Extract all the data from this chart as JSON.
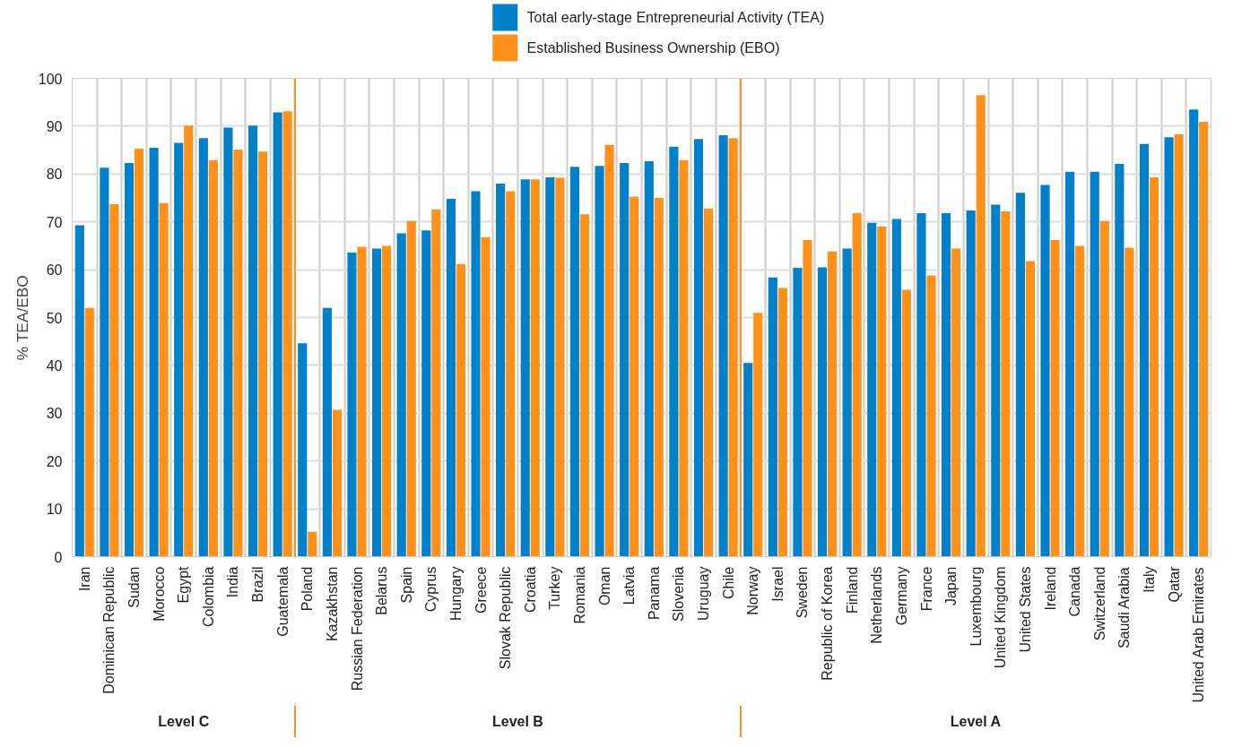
{
  "chart_data": {
    "type": "bar",
    "ylabel": "% TEA/EBO",
    "categories": [
      "Iran",
      "Dominican Republic",
      "Sudan",
      "Morocco",
      "Egypt",
      "Colombia",
      "India",
      "Brazil",
      "Guatemala",
      "Poland",
      "Kazakhstan",
      "Russian Federation",
      "Belarus",
      "Spain",
      "Cyprus",
      "Hungary",
      "Greece",
      "Slovak Republic",
      "Croatia",
      "Turkey",
      "Romania",
      "Oman",
      "Latvia",
      "Panama",
      "Slovenia",
      "Uruguay",
      "Chile",
      "Norway",
      "Israel",
      "Sweden",
      "Republic of Korea",
      "Finland",
      "Netherlands",
      "Germany",
      "France",
      "Japan",
      "Luxembourg",
      "United Kingdom",
      "United States",
      "Ireland",
      "Canada",
      "Switzerland",
      "Saudi Arabia",
      "Italy",
      "Qatar",
      "United Arab Emirates"
    ],
    "series": [
      {
        "name": "Total early-stage Entrepreneurial Activity (TEA)",
        "color": "#0280c9",
        "values": [
          69.3,
          81.3,
          82.3,
          85.5,
          86.5,
          87.5,
          89.7,
          90.1,
          92.9,
          44.6,
          52.0,
          63.6,
          64.4,
          67.6,
          68.2,
          74.8,
          76.4,
          78.0,
          78.9,
          79.3,
          81.5,
          81.7,
          82.3,
          82.7,
          85.7,
          87.3,
          88.1,
          40.5,
          58.4,
          60.4,
          60.5,
          64.4,
          69.8,
          70.6,
          71.8,
          71.8,
          72.4,
          73.6,
          76.1,
          77.7,
          80.5,
          80.5,
          82.1,
          86.3,
          87.7,
          93.5
        ]
      },
      {
        "name": "Established Business Ownership (EBO)",
        "color": "#fe9119",
        "values": [
          52.0,
          73.7,
          85.3,
          73.9,
          90.1,
          82.9,
          85.1,
          84.7,
          93.1,
          5.2,
          30.7,
          64.8,
          65.0,
          70.2,
          72.6,
          61.2,
          66.8,
          76.4,
          78.9,
          79.2,
          71.6,
          86.1,
          75.3,
          75.0,
          82.9,
          72.8,
          87.5,
          51.0,
          56.2,
          66.2,
          63.8,
          71.8,
          69.0,
          55.8,
          58.8,
          64.4,
          96.5,
          72.2,
          61.8,
          66.2,
          65.0,
          70.2,
          64.6,
          79.3,
          88.3,
          90.9
        ]
      }
    ],
    "ylim": [
      0,
      100
    ],
    "yticks": [
      0,
      10,
      20,
      30,
      40,
      50,
      60,
      70,
      80,
      90,
      100
    ],
    "grid": true,
    "legend": "top",
    "annotations": [
      "Level C",
      "Level B",
      "Level A"
    ]
  }
}
